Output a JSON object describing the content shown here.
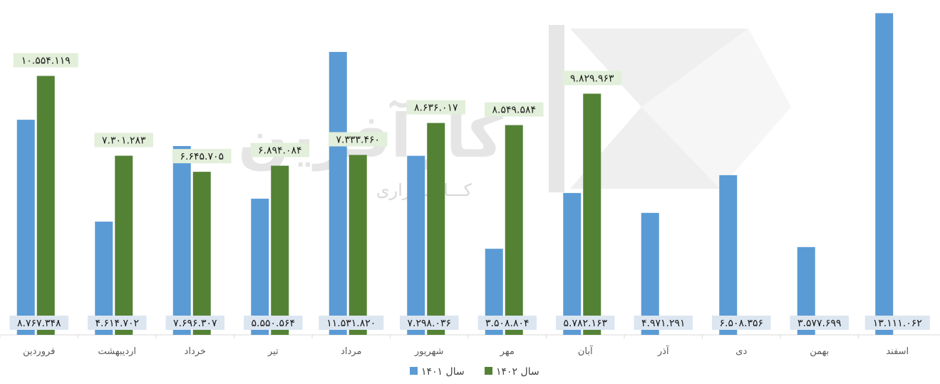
{
  "watermark": {
    "name": "کارآفرین",
    "sub": "کـــارگـــزاری"
  },
  "chart_data": {
    "type": "bar",
    "categories": [
      "فروردین",
      "اردیبهشت",
      "خرداد",
      "تیر",
      "مرداد",
      "شهریور",
      "مهر",
      "آبان",
      "آذر",
      "دی",
      "بهمن",
      "اسفند"
    ],
    "series": [
      {
        "name": "سال ۱۴۰۱",
        "color": "#5b9bd5",
        "values": [
          8767348,
          4614702,
          7696307,
          5550564,
          11531820,
          7298036,
          3508804,
          5782163,
          4971291,
          6508356,
          3577699,
          13111062
        ],
        "labels": [
          "۸.۷۶۷.۳۴۸",
          "۴.۶۱۴.۷۰۲",
          "۷.۶۹۶.۳۰۷",
          "۵.۵۵۰.۵۶۴",
          "۱۱.۵۳۱.۸۲۰",
          "۷.۲۹۸.۰۳۶",
          "۳.۵۰۸.۸۰۴",
          "۵.۷۸۲.۱۶۳",
          "۴.۹۷۱.۲۹۱",
          "۶.۵۰۸.۳۵۶",
          "۳.۵۷۷.۶۹۹",
          "۱۳.۱۱۱.۰۶۲"
        ]
      },
      {
        "name": "سال ۱۴۰۲",
        "color": "#548235",
        "values": [
          10554119,
          7301283,
          6645705,
          6894084,
          7333460,
          8636017,
          8549584,
          9829963,
          null,
          null,
          null,
          null
        ],
        "labels": [
          "۱۰.۵۵۴.۱۱۹",
          "۷.۳۰۱.۲۸۳",
          "۶.۶۴۵.۷۰۵",
          "۶.۸۹۴.۰۸۴",
          "۷.۳۳۳.۴۶۰",
          "۸.۶۳۶.۰۱۷",
          "۸.۵۴۹.۵۸۴",
          "۹.۸۲۹.۹۶۳",
          "",
          "",
          "",
          ""
        ]
      }
    ],
    "ylim": [
      0,
      13300000
    ],
    "grid": false,
    "legend_position": "bottom"
  }
}
